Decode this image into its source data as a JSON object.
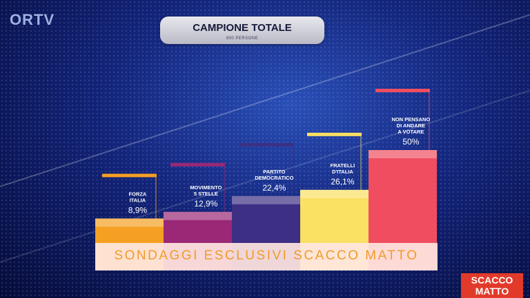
{
  "header": {
    "logo": "ORTV",
    "title": "CAMPIONE TOTALE",
    "subtitle": "900 PERSONE"
  },
  "chart_data": {
    "type": "bar",
    "title": "CAMPIONE TOTALE",
    "subtitle": "900 PERSONE",
    "categories": [
      "FORZA ITALIA",
      "MOVIMENTO 5 STELLE",
      "PARTITO DEMOCRATICO",
      "FRATELLI D'ITALIA",
      "NON PENSANO DI ANDARE A VOTARE"
    ],
    "category_lines": [
      [
        "FORZA",
        "ITALIA"
      ],
      [
        "MOVIMENTO",
        "5 STELLE"
      ],
      [
        "PARTITO",
        "DEMOCRATICO"
      ],
      [
        "FRATELLI",
        "D'ITALIA"
      ],
      [
        "NON PENSANO",
        "DI ANDARE",
        "A VOTARE"
      ]
    ],
    "values": [
      8.9,
      12.9,
      22.4,
      26.1,
      50
    ],
    "value_labels": [
      "8,9%",
      "12,9%",
      "22,4%",
      "26,1%",
      "50%"
    ],
    "colors": [
      "#f5a023",
      "#9a2876",
      "#3c2f84",
      "#fae063",
      "#f04e60"
    ],
    "ylim": [
      0,
      50
    ],
    "grid": false,
    "legend": "none"
  },
  "banner": "SONDAGGI ESCLUSIVI SCACCO MATTO",
  "brand": [
    "SCACCO",
    "MATTO"
  ]
}
